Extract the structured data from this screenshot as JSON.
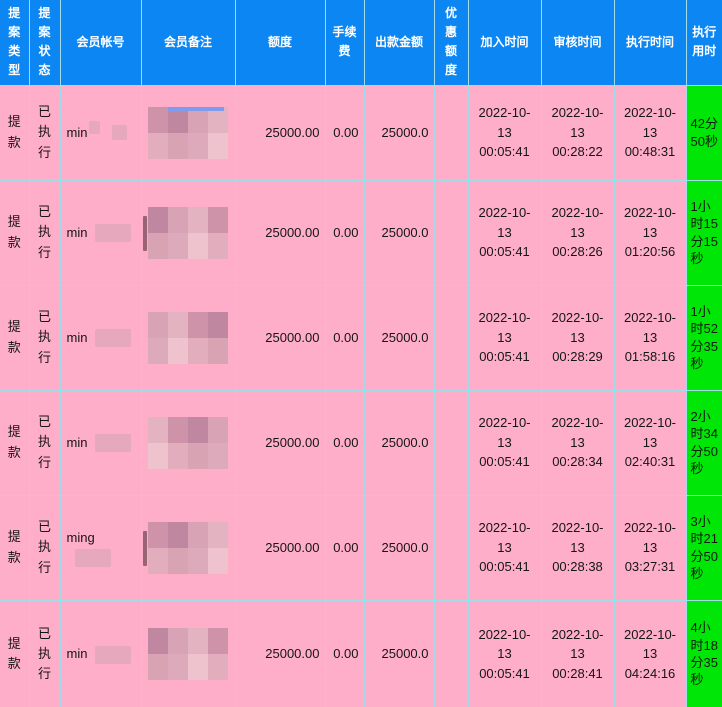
{
  "table": {
    "columns": [
      {
        "key": "type",
        "label": "提案类型"
      },
      {
        "key": "status",
        "label": "提案状态"
      },
      {
        "key": "account",
        "label": "会员帐号"
      },
      {
        "key": "remark",
        "label": "会员备注"
      },
      {
        "key": "amount",
        "label": "额度"
      },
      {
        "key": "fee",
        "label": "手续费"
      },
      {
        "key": "payout",
        "label": "出款金额"
      },
      {
        "key": "discount",
        "label": "优惠额度"
      },
      {
        "key": "join_time",
        "label": "加入时间"
      },
      {
        "key": "review_time",
        "label": "审核时间"
      },
      {
        "key": "exec_time",
        "label": "执行时间"
      },
      {
        "key": "duration",
        "label": "执行用时"
      }
    ],
    "rows": [
      {
        "type": "提款",
        "status": "已执行",
        "account": "min",
        "amount": "25000.00",
        "fee": "0.00",
        "payout": "25000.0",
        "discount": "",
        "join_time": "2022-10-13 00:05:41",
        "review_time": "2022-10-13 00:28:22",
        "exec_time": "2022-10-13 00:48:31",
        "duration": "42分50秒",
        "remark_highlight": true,
        "remark_fragment": false
      },
      {
        "type": "提款",
        "status": "已执行",
        "account": "min",
        "amount": "25000.00",
        "fee": "0.00",
        "payout": "25000.0",
        "discount": "",
        "join_time": "2022-10-13 00:05:41",
        "review_time": "2022-10-13 00:28:26",
        "exec_time": "2022-10-13 01:20:56",
        "duration": "1小时15分15秒",
        "remark_highlight": false,
        "remark_fragment": true
      },
      {
        "type": "提款",
        "status": "已执行",
        "account": "min",
        "amount": "25000.00",
        "fee": "0.00",
        "payout": "25000.0",
        "discount": "",
        "join_time": "2022-10-13 00:05:41",
        "review_time": "2022-10-13 00:28:29",
        "exec_time": "2022-10-13 01:58:16",
        "duration": "1小时52分35秒",
        "remark_highlight": false,
        "remark_fragment": false
      },
      {
        "type": "提款",
        "status": "已执行",
        "account": "min",
        "amount": "25000.00",
        "fee": "0.00",
        "payout": "25000.0",
        "discount": "",
        "join_time": "2022-10-13 00:05:41",
        "review_time": "2022-10-13 00:28:34",
        "exec_time": "2022-10-13 02:40:31",
        "duration": "2小时34分50秒",
        "remark_highlight": false,
        "remark_fragment": false
      },
      {
        "type": "提款",
        "status": "已执行",
        "account": "ming",
        "amount": "25000.00",
        "fee": "0.00",
        "payout": "25000.0",
        "discount": "",
        "join_time": "2022-10-13 00:05:41",
        "review_time": "2022-10-13 00:28:38",
        "exec_time": "2022-10-13 03:27:31",
        "duration": "3小时21分50秒",
        "remark_highlight": false,
        "remark_fragment": true
      },
      {
        "type": "提款",
        "status": "已执行",
        "account": "min",
        "amount": "25000.00",
        "fee": "0.00",
        "payout": "25000.0",
        "discount": "",
        "join_time": "2022-10-13 00:05:41",
        "review_time": "2022-10-13 00:28:41",
        "exec_time": "2022-10-13 04:24:16",
        "duration": "4小时18分35秒",
        "remark_highlight": false,
        "remark_fragment": false
      }
    ]
  },
  "colors": {
    "header_bg": "#0b86f2",
    "row_bg": "#ffaec9",
    "grid": "#a4dbe8",
    "duration_bg": "#00e606",
    "header_text": "#ffffff",
    "body_text": "#151515",
    "censor": "#e5a8bd",
    "highlight_strip": "#7e9bee",
    "mosaic_top": [
      "#cf93a9",
      "#bf88a0",
      "#d8a3b5",
      "#e3b3c1"
    ],
    "mosaic_bottom": [
      "#e2aebe",
      "#d8a3b3",
      "#dcaabb",
      "#eec3cd"
    ]
  }
}
